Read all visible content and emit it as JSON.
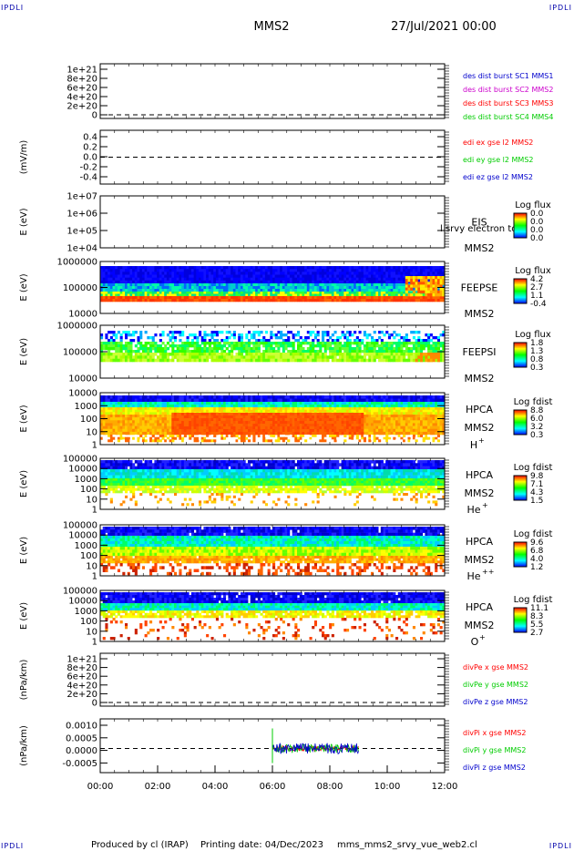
{
  "header": {
    "corner_label": "IPDLI",
    "spacecraft": "MMS2",
    "datetime": "27/Jul/2021 00:00"
  },
  "footer": {
    "credit": "Produced by cl (IRAP)",
    "printing_date": "Printing date: 04/Dec/2023",
    "script": "mms_mms2_srvy_vue_web2.cl"
  },
  "colors": {
    "red": "#ff0000",
    "green": "#00cc00",
    "blue": "#0000cc",
    "magenta": "#cc00cc",
    "orange": "#ff5500"
  },
  "chart_data": [
    {
      "id": "des-dist",
      "type": "line",
      "ylabel": "",
      "y_ticks": [
        "1e+21",
        "8e+20",
        "6e+20",
        "4e+20",
        "2e+20",
        "0"
      ],
      "dashed_zero": true,
      "legend": [
        {
          "text": "des dist burst SC1 MMS1",
          "color": "#0000cc"
        },
        {
          "text": "des dist burst SC2 MMS2",
          "color": "#cc00cc"
        },
        {
          "text": "des dist burst SC3 MMS3",
          "color": "#ff0000"
        },
        {
          "text": "des dist burst SC4 MMS4",
          "color": "#00cc00"
        }
      ]
    },
    {
      "id": "edi-e",
      "type": "line",
      "ylabel": "(mV/m)",
      "y_ticks": [
        "0.4",
        "0.2",
        "0.0",
        "-0.2",
        "-0.4"
      ],
      "dashed_zero": true,
      "legend": [
        {
          "text": "edi ex gse l2 MMS2",
          "color": "#ff0000"
        },
        {
          "text": "edi ey gse l2 MMS2",
          "color": "#00cc00"
        },
        {
          "text": "edi ez gse l2 MMS2",
          "color": "#0000cc"
        }
      ]
    },
    {
      "id": "eis",
      "type": "heatmap",
      "ylabel": "E (eV)",
      "y_ticks": [
        "1e+07",
        "1e+06",
        "1e+05",
        "1e+04"
      ],
      "instrument": [
        "EIS",
        "MMS2"
      ],
      "overlay_text": "l srvy electron to",
      "colorbar_title": "Log flux",
      "colorbar_ticks": [
        "0.0",
        "0.0",
        "0.0",
        "0.0"
      ]
    },
    {
      "id": "feeps-e",
      "type": "heatmap",
      "ylabel": "E (eV)",
      "y_ticks": [
        "1000000",
        "100000",
        "10000"
      ],
      "instrument": [
        "FEEPSE",
        "MMS2"
      ],
      "colorbar_title": "Log flux",
      "colorbar_ticks": [
        "4.2",
        "2.7",
        "1.1",
        "-0.4"
      ]
    },
    {
      "id": "feeps-i",
      "type": "heatmap",
      "ylabel": "E (eV)",
      "y_ticks": [
        "1000000",
        "100000",
        "10000"
      ],
      "instrument": [
        "FEEPSI",
        "MMS2"
      ],
      "colorbar_title": "Log flux",
      "colorbar_ticks": [
        "1.8",
        "1.3",
        "0.8",
        "0.3"
      ]
    },
    {
      "id": "hpca-h",
      "type": "heatmap",
      "ylabel": "E (eV)",
      "y_ticks": [
        "10000",
        "1000",
        "100",
        "10",
        "1"
      ],
      "instrument": [
        "HPCA",
        "MMS2"
      ],
      "species": "H",
      "species_charge": "+",
      "colorbar_title": "Log fdist",
      "colorbar_ticks": [
        "8.8",
        "6.0",
        "3.2",
        "0.3"
      ]
    },
    {
      "id": "hpca-he",
      "type": "heatmap",
      "ylabel": "E (eV)",
      "y_ticks": [
        "100000",
        "10000",
        "1000",
        "100",
        "10",
        "1"
      ],
      "instrument": [
        "HPCA",
        "MMS2"
      ],
      "species": "He",
      "species_charge": "+",
      "colorbar_title": "Log fdist",
      "colorbar_ticks": [
        "9.8",
        "7.1",
        "4.3",
        "1.5"
      ]
    },
    {
      "id": "hpca-hepp",
      "type": "heatmap",
      "ylabel": "E (eV)",
      "y_ticks": [
        "100000",
        "10000",
        "1000",
        "100",
        "10",
        "1"
      ],
      "instrument": [
        "HPCA",
        "MMS2"
      ],
      "species": "He",
      "species_charge": "++",
      "colorbar_title": "Log fdist",
      "colorbar_ticks": [
        "9.6",
        "6.8",
        "4.0",
        "1.2"
      ]
    },
    {
      "id": "hpca-o",
      "type": "heatmap",
      "ylabel": "E (eV)",
      "y_ticks": [
        "100000",
        "10000",
        "1000",
        "100",
        "10",
        "1"
      ],
      "instrument": [
        "HPCA",
        "MMS2"
      ],
      "species": "O",
      "species_charge": "+",
      "colorbar_title": "Log fdist",
      "colorbar_ticks": [
        "11.1",
        "8.3",
        "5.5",
        "2.7"
      ]
    },
    {
      "id": "divpe",
      "type": "line",
      "ylabel": "(nPa/km)",
      "y_ticks": [
        "1e+21",
        "8e+20",
        "6e+20",
        "4e+20",
        "2e+20",
        "0"
      ],
      "dashed_zero": true,
      "legend": [
        {
          "text": "divPe x gse MMS2",
          "color": "#ff0000"
        },
        {
          "text": "divPe y gse MMS2",
          "color": "#00cc00"
        },
        {
          "text": "divPe z gse MMS2",
          "color": "#0000cc"
        }
      ]
    },
    {
      "id": "divpi",
      "type": "line",
      "ylabel": "(nPa/km)",
      "y_ticks": [
        "0.0010",
        "0.0005",
        "0.0000",
        "-0.0005"
      ],
      "dashed_zero": true,
      "series_time_range": [
        "06:00",
        "09:00"
      ],
      "legend": [
        {
          "text": "divPi x gse MMS2",
          "color": "#ff0000"
        },
        {
          "text": "divPi y gse MMS2",
          "color": "#00cc00"
        },
        {
          "text": "divPi z gse MMS2",
          "color": "#0000cc"
        }
      ]
    }
  ],
  "x_axis": {
    "ticks": [
      "00:00",
      "02:00",
      "04:00",
      "06:00",
      "08:00",
      "10:00",
      "12:00"
    ],
    "range_hours": [
      0,
      12
    ]
  }
}
